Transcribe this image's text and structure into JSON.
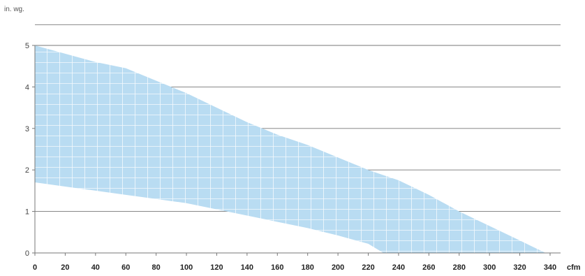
{
  "chart_data": {
    "type": "area",
    "ylabel": "in. wg.",
    "xunit": "cfm",
    "x_ticks": [
      0,
      20,
      40,
      60,
      80,
      100,
      120,
      140,
      160,
      180,
      200,
      220,
      240,
      260,
      280,
      300,
      320,
      340
    ],
    "y_ticks": [
      0,
      1,
      2,
      3,
      4,
      5
    ],
    "xlim": [
      0,
      340
    ],
    "ylim": [
      0,
      5.5
    ],
    "grid": "horizontal",
    "fill_color": "#b9dcf2",
    "series": [
      {
        "role": "upper",
        "x": [
          0,
          20,
          40,
          60,
          80,
          100,
          120,
          140,
          160,
          180,
          200,
          220,
          240,
          260,
          280,
          300,
          320,
          337
        ],
        "y": [
          5.0,
          4.8,
          4.6,
          4.45,
          4.15,
          3.85,
          3.5,
          3.15,
          2.85,
          2.6,
          2.3,
          2.0,
          1.75,
          1.4,
          1.0,
          0.65,
          0.3,
          0.0
        ]
      },
      {
        "role": "lower",
        "x": [
          0,
          20,
          40,
          60,
          80,
          100,
          120,
          140,
          160,
          180,
          200,
          220,
          230
        ],
        "y": [
          1.7,
          1.6,
          1.5,
          1.4,
          1.3,
          1.2,
          1.05,
          0.9,
          0.75,
          0.6,
          0.42,
          0.22,
          0.0
        ]
      }
    ]
  }
}
